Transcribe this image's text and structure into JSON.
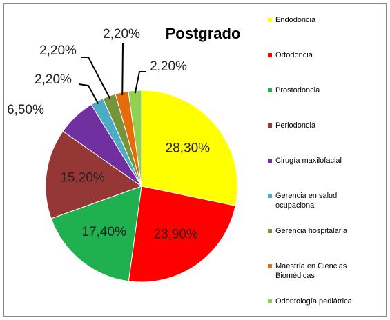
{
  "chart_data": {
    "type": "pie",
    "title": "Postgrado",
    "categories": [
      "Endodoncia",
      "Ortodoncia",
      "Prostodoncia",
      "Periodoncia",
      "Cirugía maxilofacial",
      "Gerencia en salud ocupacional",
      "Gerencia hospitalaria",
      "Maestría en Ciencias Biomédicas",
      "Odontología pediátrica"
    ],
    "values": [
      28.3,
      23.9,
      17.4,
      15.2,
      6.5,
      2.2,
      2.2,
      2.2,
      2.2
    ],
    "value_labels": [
      "28,30%",
      "23,90%",
      "17,40%",
      "15,20%",
      "6,50%",
      "2,20%",
      "2,20%",
      "2,20%",
      "2,20%"
    ],
    "colors": [
      "#ffff00",
      "#ff0000",
      "#1fb04f",
      "#953735",
      "#7030a0",
      "#4bacc6",
      "#77933c",
      "#e46c0a",
      "#92d050"
    ],
    "legend": "right"
  }
}
